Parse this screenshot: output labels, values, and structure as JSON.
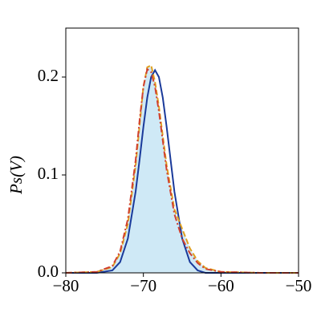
{
  "chart_data": {
    "type": "line",
    "ylabel": "Ps(V)",
    "x": [
      -80,
      -76,
      -74,
      -73,
      -72,
      -71,
      -70.5,
      -70,
      -69.5,
      -69,
      -68.5,
      -68,
      -67.5,
      -67,
      -66,
      -65,
      -64,
      -63,
      -62,
      -60,
      -55,
      -50
    ],
    "xlim": [
      -80,
      -50
    ],
    "xticks": [
      {
        "value": -80,
        "label": "−80"
      },
      {
        "value": -70,
        "label": "−70"
      },
      {
        "value": -60,
        "label": "−60"
      },
      {
        "value": -50,
        "label": "−50"
      }
    ],
    "ylim": [
      0,
      0.25
    ],
    "yticks": [
      {
        "value": 0,
        "label": "0.0"
      },
      0.1,
      0.2
    ],
    "series": [
      {
        "color": "#cfe9f6",
        "fill": true,
        "values": [
          0,
          0.001,
          0.006,
          0.02,
          0.05,
          0.11,
          0.15,
          0.19,
          0.21,
          0.21,
          0.195,
          0.17,
          0.14,
          0.11,
          0.065,
          0.045,
          0.025,
          0.012,
          0.005,
          0.001,
          0,
          0
        ]
      },
      {
        "color": "#1a3a9a",
        "dash": "solid",
        "values": [
          0,
          0,
          0.0025,
          0.011,
          0.035,
          0.083,
          0.115,
          0.149,
          0.179,
          0.2,
          0.207,
          0.2,
          0.179,
          0.149,
          0.083,
          0.035,
          0.011,
          0.0025,
          0,
          0,
          0,
          0
        ]
      },
      {
        "color": "#e0a020",
        "dash": "dashed",
        "values": [
          0,
          0.001,
          0.006,
          0.02,
          0.05,
          0.11,
          0.15,
          0.19,
          0.21,
          0.212,
          0.195,
          0.17,
          0.14,
          0.11,
          0.065,
          0.045,
          0.025,
          0.012,
          0.005,
          0.001,
          0,
          0
        ]
      },
      {
        "color": "#d04030",
        "dash": "dashdot",
        "values": [
          0,
          0.001,
          0.007,
          0.022,
          0.055,
          0.115,
          0.155,
          0.19,
          0.208,
          0.205,
          0.19,
          0.165,
          0.135,
          0.105,
          0.06,
          0.035,
          0.02,
          0.01,
          0.004,
          0.001,
          0,
          0
        ]
      }
    ]
  }
}
